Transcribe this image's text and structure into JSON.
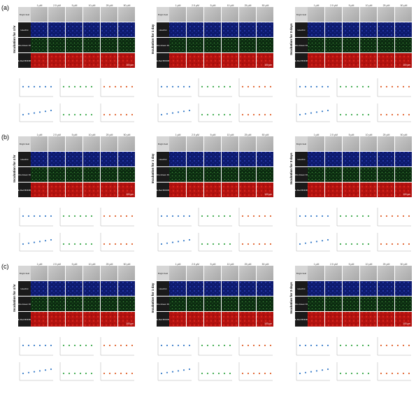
{
  "sections": [
    {
      "label": "(a)",
      "panels": [
        {
          "side_label": "Incubation for 4 hr"
        },
        {
          "side_label": "Incubation for 1 day"
        },
        {
          "side_label": "Incubation for 3 days"
        }
      ]
    },
    {
      "label": "(b)",
      "panels": [
        {
          "side_label": "Incubation for 4 hr"
        },
        {
          "side_label": "Incubation for 1 day"
        },
        {
          "side_label": "Incubation for 3 days"
        }
      ]
    },
    {
      "label": "(c)",
      "panels": [
        {
          "side_label": "Incubation for 4 hr"
        },
        {
          "side_label": "Incubation for 1 day"
        },
        {
          "side_label": "Incubation for 3 days"
        }
      ]
    }
  ],
  "columns": [
    "1 µM",
    "2.5 µM",
    "5 µM",
    "10 µM",
    "25 µM",
    "50 µM"
  ],
  "rows": [
    "Bright field",
    "Hoechst",
    "Mito-Green FM",
    "CE-Red BODIPY"
  ],
  "scale_bar": "100 µm"
}
